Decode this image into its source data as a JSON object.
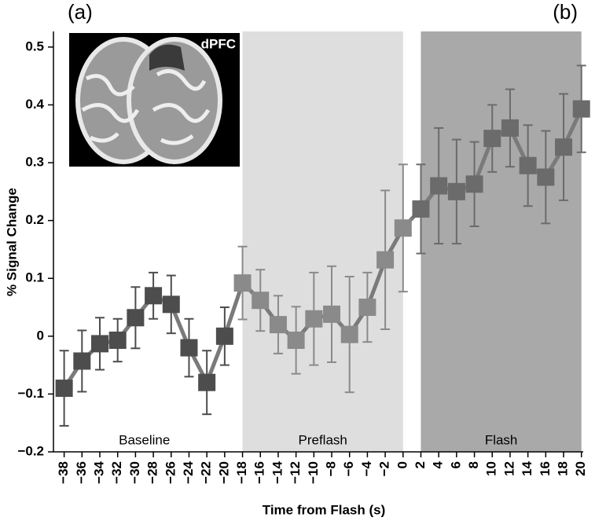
{
  "chart_data": {
    "type": "line",
    "panel_labels": [
      "(a)",
      "(b)"
    ],
    "inset_label": "dPFC",
    "x_label": "Time from Flash (s)",
    "y_label": "% Signal Change",
    "x": [
      -38,
      -36,
      -34,
      -32,
      -30,
      -28,
      -26,
      -24,
      -22,
      -20,
      -18,
      -16,
      -14,
      -12,
      -10,
      -8,
      -6,
      -4,
      -2,
      0,
      2,
      4,
      6,
      8,
      10,
      12,
      14,
      16,
      18,
      20
    ],
    "series": [
      {
        "color": "#7a7a7a",
        "values": [
          -0.09,
          -0.043,
          -0.013,
          -0.007,
          0.032,
          0.07,
          0.055,
          -0.02,
          -0.08,
          0.0,
          0.092,
          0.062,
          0.02,
          -0.007,
          0.03,
          0.038,
          0.003,
          0.05,
          0.132,
          0.187,
          0.22,
          0.26,
          0.25,
          0.263,
          0.342,
          0.36,
          0.295,
          0.275,
          0.327,
          0.393
        ],
        "errors": [
          0.065,
          0.053,
          0.045,
          0.037,
          0.053,
          0.04,
          0.05,
          0.05,
          0.055,
          0.05,
          0.063,
          0.053,
          0.05,
          0.058,
          0.08,
          0.083,
          0.1,
          0.06,
          0.12,
          0.11,
          0.077,
          0.1,
          0.09,
          0.073,
          0.058,
          0.067,
          0.07,
          0.08,
          0.092,
          0.075
        ]
      }
    ],
    "regions": [
      {
        "label": "Baseline",
        "start": -38,
        "end": -20,
        "fill": "none",
        "marker_color": "#4d4d4d"
      },
      {
        "label": "Preflash",
        "start": -18,
        "end": 0,
        "fill": "#dedede",
        "marker_color": "#8a8a8a"
      },
      {
        "label": "Flash",
        "start": 2,
        "end": 20,
        "fill": "#a9a9a9",
        "marker_color": "#6b6b6b"
      }
    ],
    "xlim": [
      -39.2,
      20.2
    ],
    "ylim": [
      -0.2,
      0.527
    ],
    "xticks": [
      {
        "value": -38,
        "label": "−38"
      },
      {
        "value": -36,
        "label": "−36"
      },
      {
        "value": -34,
        "label": "−34"
      },
      {
        "value": -32,
        "label": "−32"
      },
      {
        "value": -30,
        "label": "−30"
      },
      {
        "value": -28,
        "label": "−28"
      },
      {
        "value": -26,
        "label": "−26"
      },
      {
        "value": -24,
        "label": "−24"
      },
      {
        "value": -22,
        "label": "−22"
      },
      {
        "value": -20,
        "label": "−20"
      },
      {
        "value": -18,
        "label": "−18"
      },
      {
        "value": -16,
        "label": "−16"
      },
      {
        "value": -14,
        "label": "−14"
      },
      {
        "value": -12,
        "label": "−12"
      },
      {
        "value": -10,
        "label": "−10"
      },
      {
        "value": -8,
        "label": "−8"
      },
      {
        "value": -6,
        "label": "−6"
      },
      {
        "value": -4,
        "label": "−4"
      },
      {
        "value": -2,
        "label": "−2"
      },
      0,
      2,
      4,
      6,
      8,
      10,
      12,
      14,
      16,
      18,
      20
    ],
    "yticks": [
      {
        "value": -0.2,
        "label": "−0.2"
      },
      {
        "value": -0.1,
        "label": "−0.1"
      },
      0,
      0.1,
      0.2,
      0.3,
      0.4,
      0.5
    ]
  }
}
